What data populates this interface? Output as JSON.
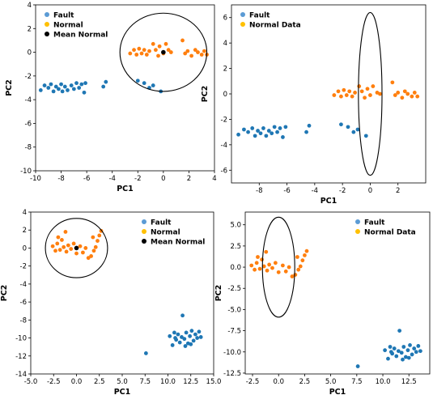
{
  "colors": {
    "fault": "#1f77b4",
    "normal": "#ff7f0e",
    "mean": "#000000",
    "legend_fault": "#5b9bd5",
    "legend_normal": "#ffc000"
  },
  "chart_data": [
    {
      "type": "scatter",
      "xlabel": "PC1",
      "ylabel": "PC2",
      "xlim": [
        -10,
        4
      ],
      "ylim": [
        -10,
        4
      ],
      "xticks": [
        "-10",
        "-8",
        "-6",
        "-4",
        "-2",
        "0",
        "2",
        "4"
      ],
      "yticks": [
        "-10",
        "-8",
        "-6",
        "-4",
        "-2",
        "0",
        "2",
        "4"
      ],
      "legend": [
        "Fault",
        "Normal",
        "Mean Normal"
      ],
      "legend_position": "top-left",
      "ellipse": {
        "cx": 0,
        "cy": 0,
        "rx": 3.4,
        "ry": 3.3
      },
      "series": [
        {
          "role": "fault",
          "points": [
            [
              -9.6,
              -3.2
            ],
            [
              -9.3,
              -2.8
            ],
            [
              -9.0,
              -3.0
            ],
            [
              -8.8,
              -2.7
            ],
            [
              -8.6,
              -3.3
            ],
            [
              -8.4,
              -2.9
            ],
            [
              -8.2,
              -3.1
            ],
            [
              -8.0,
              -2.7
            ],
            [
              -7.9,
              -3.3
            ],
            [
              -7.7,
              -2.9
            ],
            [
              -7.5,
              -3.2
            ],
            [
              -7.2,
              -2.8
            ],
            [
              -7.0,
              -3.1
            ],
            [
              -6.8,
              -2.6
            ],
            [
              -6.6,
              -3.0
            ],
            [
              -6.4,
              -2.7
            ],
            [
              -6.2,
              -3.4
            ],
            [
              -6.1,
              -2.6
            ],
            [
              -4.7,
              -2.9
            ],
            [
              -4.5,
              -2.5
            ],
            [
              -2.0,
              -2.4
            ],
            [
              -1.5,
              -2.6
            ],
            [
              -1.1,
              -3.0
            ],
            [
              -0.8,
              -2.8
            ],
            [
              -0.2,
              -3.3
            ]
          ]
        },
        {
          "role": "normal",
          "points": [
            [
              -2.6,
              -0.1
            ],
            [
              -2.3,
              0.2
            ],
            [
              -2.1,
              -0.2
            ],
            [
              -1.9,
              0.3
            ],
            [
              -1.7,
              -0.1
            ],
            [
              -1.5,
              0.2
            ],
            [
              -1.3,
              -0.2
            ],
            [
              -1.1,
              0.1
            ],
            [
              -0.8,
              0.7
            ],
            [
              -0.6,
              0.2
            ],
            [
              -0.4,
              -0.3
            ],
            [
              -0.3,
              0.5
            ],
            [
              0.0,
              -0.1
            ],
            [
              0.2,
              0.7
            ],
            [
              0.4,
              0.2
            ],
            [
              0.6,
              0.0
            ],
            [
              1.5,
              1.0
            ],
            [
              1.7,
              -0.1
            ],
            [
              1.9,
              0.1
            ],
            [
              2.2,
              -0.3
            ],
            [
              2.5,
              0.2
            ],
            [
              2.7,
              0.0
            ],
            [
              3.0,
              -0.2
            ],
            [
              3.2,
              0.1
            ],
            [
              3.4,
              -0.2
            ]
          ]
        },
        {
          "role": "mean",
          "points": [
            [
              0.0,
              0.0
            ]
          ]
        }
      ]
    },
    {
      "type": "scatter",
      "xlabel": "PC1",
      "ylabel": "PC2",
      "xlim": [
        -10,
        4
      ],
      "ylim": [
        -7,
        7
      ],
      "xticks": [
        "-8",
        "-6",
        "-4",
        "-2",
        "0",
        "2"
      ],
      "yticks": [
        "-6",
        "-4",
        "-2",
        "0",
        "2",
        "4",
        "6"
      ],
      "legend": [
        "Fault",
        "Normal Data"
      ],
      "legend_position": "top-left",
      "ellipse": {
        "cx": 0,
        "cy": 0,
        "rx": 0.85,
        "ry": 6.4
      },
      "series": [
        {
          "role": "fault",
          "points": [
            [
              -9.5,
              -3.2
            ],
            [
              -9.1,
              -2.8
            ],
            [
              -8.8,
              -3.0
            ],
            [
              -8.5,
              -2.7
            ],
            [
              -8.3,
              -3.3
            ],
            [
              -8.1,
              -2.9
            ],
            [
              -7.9,
              -3.1
            ],
            [
              -7.7,
              -2.7
            ],
            [
              -7.5,
              -3.3
            ],
            [
              -7.3,
              -2.9
            ],
            [
              -7.1,
              -3.1
            ],
            [
              -6.9,
              -2.6
            ],
            [
              -6.7,
              -3.0
            ],
            [
              -6.5,
              -2.7
            ],
            [
              -6.3,
              -3.4
            ],
            [
              -6.1,
              -2.6
            ],
            [
              -4.6,
              -3.0
            ],
            [
              -4.4,
              -2.5
            ],
            [
              -2.1,
              -2.4
            ],
            [
              -1.6,
              -2.6
            ],
            [
              -1.2,
              -3.0
            ],
            [
              -0.9,
              -2.8
            ],
            [
              -0.3,
              -3.3
            ]
          ]
        },
        {
          "role": "normal",
          "points": [
            [
              -2.6,
              -0.1
            ],
            [
              -2.3,
              0.2
            ],
            [
              -2.1,
              -0.2
            ],
            [
              -1.9,
              0.3
            ],
            [
              -1.7,
              -0.1
            ],
            [
              -1.5,
              0.2
            ],
            [
              -1.3,
              -0.2
            ],
            [
              -1.1,
              0.1
            ],
            [
              -0.8,
              0.6
            ],
            [
              -0.6,
              0.2
            ],
            [
              -0.4,
              -0.3
            ],
            [
              -0.2,
              0.4
            ],
            [
              0.0,
              -0.1
            ],
            [
              0.2,
              0.6
            ],
            [
              0.5,
              0.1
            ],
            [
              0.7,
              0.0
            ],
            [
              1.6,
              0.9
            ],
            [
              1.8,
              -0.1
            ],
            [
              2.0,
              0.1
            ],
            [
              2.3,
              -0.3
            ],
            [
              2.5,
              0.2
            ],
            [
              2.7,
              0.0
            ],
            [
              3.0,
              -0.2
            ],
            [
              3.2,
              0.1
            ],
            [
              3.4,
              -0.2
            ]
          ]
        }
      ]
    },
    {
      "type": "scatter",
      "xlabel": "PC1",
      "ylabel": "PC2",
      "xlim": [
        -5,
        15
      ],
      "ylim": [
        -14,
        4
      ],
      "xticks": [
        "-5.0",
        "-2.5",
        "0.0",
        "2.5",
        "5.0",
        "7.5",
        "10.0",
        "12.5",
        "15.0"
      ],
      "yticks": [
        "-14",
        "-12",
        "-10",
        "-8",
        "-6",
        "-4",
        "-2",
        "0",
        "2",
        "4"
      ],
      "legend": [
        "Fault",
        "Normal",
        "Mean Normal"
      ],
      "legend_position": "top-right",
      "ellipse": {
        "cx": 0,
        "cy": 0,
        "rx": 3.4,
        "ry": 3.3
      },
      "series": [
        {
          "role": "fault",
          "points": [
            [
              7.6,
              -11.7
            ],
            [
              10.2,
              -9.8
            ],
            [
              10.5,
              -10.8
            ],
            [
              10.7,
              -9.4
            ],
            [
              10.9,
              -10.2
            ],
            [
              11.1,
              -9.6
            ],
            [
              11.3,
              -10.5
            ],
            [
              11.5,
              -9.9
            ],
            [
              11.6,
              -7.5
            ],
            [
              11.8,
              -10.1
            ],
            [
              12.0,
              -9.4
            ],
            [
              12.2,
              -10.6
            ],
            [
              12.4,
              -9.8
            ],
            [
              12.6,
              -9.2
            ],
            [
              12.8,
              -10.3
            ],
            [
              13.0,
              -9.6
            ],
            [
              13.2,
              -10.0
            ],
            [
              13.4,
              -9.3
            ],
            [
              13.6,
              -9.9
            ],
            [
              10.8,
              -10.0
            ],
            [
              11.9,
              -10.9
            ],
            [
              12.5,
              -10.7
            ]
          ]
        },
        {
          "role": "normal",
          "points": [
            [
              -2.6,
              0.2
            ],
            [
              -2.3,
              -0.3
            ],
            [
              -2.1,
              0.5
            ],
            [
              -1.8,
              -0.2
            ],
            [
              -1.6,
              0.9
            ],
            [
              -1.4,
              0.1
            ],
            [
              -1.1,
              -0.4
            ],
            [
              -0.9,
              0.3
            ],
            [
              -0.6,
              -0.1
            ],
            [
              -0.3,
              0.5
            ],
            [
              0.0,
              -0.6
            ],
            [
              0.4,
              0.2
            ],
            [
              0.7,
              -0.5
            ],
            [
              1.0,
              0.0
            ],
            [
              1.3,
              -1.1
            ],
            [
              1.6,
              -0.9
            ],
            [
              1.9,
              -0.3
            ],
            [
              2.1,
              0.1
            ],
            [
              2.3,
              0.8
            ],
            [
              2.5,
              1.4
            ],
            [
              2.7,
              1.9
            ],
            [
              1.8,
              1.2
            ],
            [
              -1.2,
              1.8
            ],
            [
              -2.0,
              1.2
            ]
          ]
        },
        {
          "role": "mean",
          "points": [
            [
              0.0,
              0.0
            ]
          ]
        }
      ]
    },
    {
      "type": "scatter",
      "xlabel": "PC1",
      "ylabel": "PC2",
      "xlim": [
        -3.2,
        14.5
      ],
      "ylim": [
        -12.6,
        6.5
      ],
      "xticks": [
        "-2.5",
        "0.0",
        "2.5",
        "5.0",
        "7.5",
        "10.0",
        "12.5"
      ],
      "yticks": [
        "-12.5",
        "-10.0",
        "-7.5",
        "-5.0",
        "-2.5",
        "0.0",
        "2.5",
        "5.0"
      ],
      "legend": [
        "Fault",
        "Normal Data"
      ],
      "legend_position": "top-right",
      "ellipse": {
        "cx": 0,
        "cy": 0,
        "rx": 1.55,
        "ry": 5.9
      },
      "series": [
        {
          "role": "fault",
          "points": [
            [
              7.6,
              -11.7
            ],
            [
              10.2,
              -9.8
            ],
            [
              10.5,
              -10.8
            ],
            [
              10.7,
              -9.4
            ],
            [
              10.9,
              -10.2
            ],
            [
              11.1,
              -9.6
            ],
            [
              11.3,
              -10.5
            ],
            [
              11.5,
              -9.9
            ],
            [
              11.6,
              -7.5
            ],
            [
              11.8,
              -10.1
            ],
            [
              12.0,
              -9.4
            ],
            [
              12.2,
              -10.6
            ],
            [
              12.4,
              -9.8
            ],
            [
              12.6,
              -9.2
            ],
            [
              12.8,
              -10.3
            ],
            [
              13.0,
              -9.6
            ],
            [
              13.2,
              -10.0
            ],
            [
              13.4,
              -9.3
            ],
            [
              13.6,
              -9.9
            ],
            [
              10.8,
              -10.0
            ],
            [
              11.9,
              -10.9
            ],
            [
              12.5,
              -10.7
            ]
          ]
        },
        {
          "role": "normal",
          "points": [
            [
              -2.6,
              0.2
            ],
            [
              -2.3,
              -0.3
            ],
            [
              -2.1,
              0.5
            ],
            [
              -1.8,
              -0.2
            ],
            [
              -1.6,
              0.9
            ],
            [
              -1.4,
              0.1
            ],
            [
              -1.1,
              -0.4
            ],
            [
              -0.9,
              0.3
            ],
            [
              -0.6,
              -0.1
            ],
            [
              -0.3,
              0.5
            ],
            [
              0.0,
              -0.6
            ],
            [
              0.4,
              0.2
            ],
            [
              0.7,
              -0.5
            ],
            [
              1.0,
              0.0
            ],
            [
              1.3,
              -1.1
            ],
            [
              1.6,
              -0.9
            ],
            [
              1.9,
              -0.3
            ],
            [
              2.1,
              0.1
            ],
            [
              2.3,
              0.8
            ],
            [
              2.5,
              1.4
            ],
            [
              2.7,
              1.9
            ],
            [
              1.8,
              1.2
            ],
            [
              -1.2,
              1.8
            ],
            [
              -2.0,
              1.2
            ]
          ]
        }
      ]
    }
  ]
}
